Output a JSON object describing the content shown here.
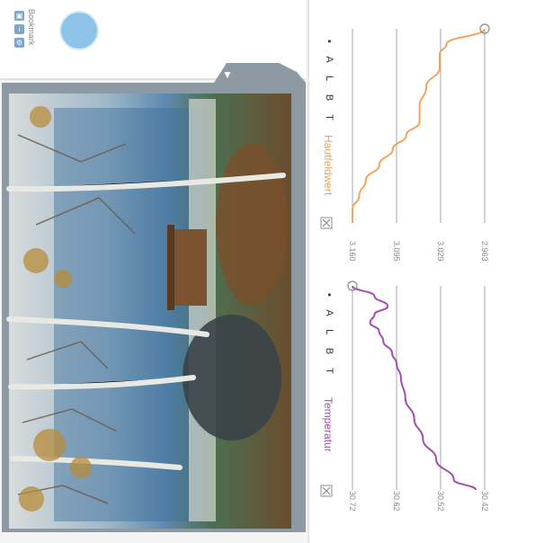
{
  "toolbar": {
    "favorites_label": "Bookmark",
    "icon_names": [
      "print-icon",
      "info-icon",
      "settings-icon"
    ]
  },
  "photo": {
    "description": "Landscape photo of birch trees in front of a lake and a wooden shelter"
  },
  "panel": {
    "collapse_arrow": "▼"
  },
  "chart_data": [
    {
      "type": "line",
      "title": "Temperatur",
      "legend_codes": "▪ A L B T",
      "ticks": [
        "30.72",
        "30.62",
        "30.52",
        "30.42"
      ],
      "ylim": [
        30.37,
        30.74
      ],
      "color": "#a64cae",
      "points": [
        [
          0.0,
          30.72
        ],
        [
          0.05,
          30.67
        ],
        [
          0.1,
          30.64
        ],
        [
          0.14,
          30.67
        ],
        [
          0.18,
          30.68
        ],
        [
          0.22,
          30.66
        ],
        [
          0.27,
          30.65
        ],
        [
          0.33,
          30.63
        ],
        [
          0.38,
          30.62
        ],
        [
          0.45,
          30.61
        ],
        [
          0.55,
          30.6
        ],
        [
          0.65,
          30.58
        ],
        [
          0.75,
          30.56
        ],
        [
          0.85,
          30.53
        ],
        [
          0.95,
          30.49
        ],
        [
          1.0,
          30.44
        ]
      ]
    },
    {
      "type": "line",
      "title": "Hautfeldwert",
      "legend_codes": "▪ A L B T",
      "ticks": [
        "3.160",
        "3.095",
        "3.029",
        "2.963"
      ],
      "ylim": [
        2.93,
        3.165
      ],
      "color": "#f4a35e",
      "points": [
        [
          0.0,
          2.963
        ],
        [
          0.08,
          3.02
        ],
        [
          0.13,
          3.03
        ],
        [
          0.2,
          3.03
        ],
        [
          0.3,
          3.05
        ],
        [
          0.4,
          3.06
        ],
        [
          0.48,
          3.06
        ],
        [
          0.55,
          3.08
        ],
        [
          0.62,
          3.1
        ],
        [
          0.7,
          3.12
        ],
        [
          0.78,
          3.14
        ],
        [
          0.86,
          3.15
        ],
        [
          0.93,
          3.16
        ],
        [
          1.0,
          3.16
        ]
      ]
    }
  ]
}
